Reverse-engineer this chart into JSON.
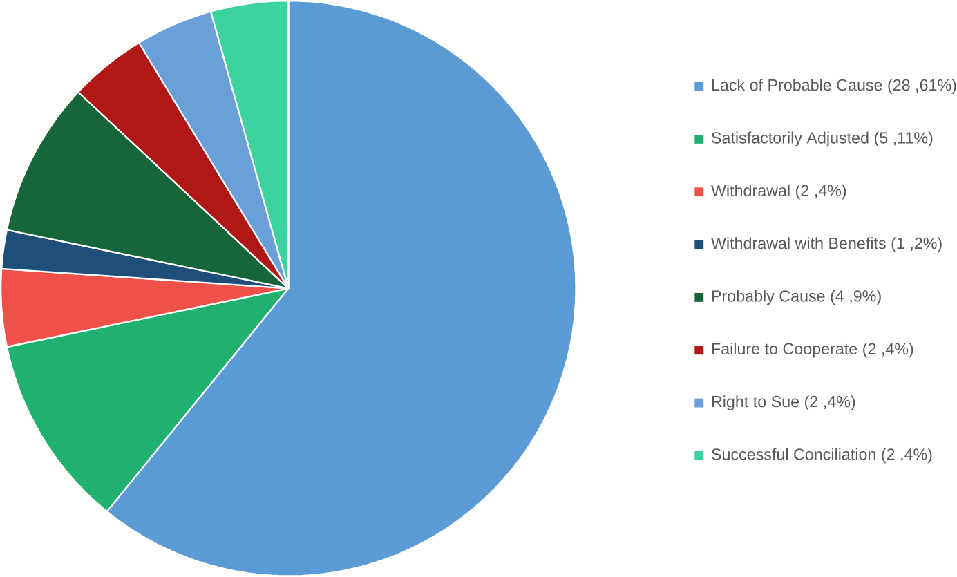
{
  "chart_data": {
    "type": "pie",
    "categories": [
      "Lack of Probable Cause (28 ,61%)",
      "Satisfactorily Adjusted (5 ,11%)",
      "Withdrawal (2 ,4%)",
      "Withdrawal with Benefits (1 ,2%)",
      "Probably Cause (4 ,9%)",
      "Failure to Cooperate (2 ,4%)",
      "Right to Sue (2 ,4%)",
      "Successful Conciliation (2 ,4%)"
    ],
    "values": [
      28,
      5,
      2,
      1,
      4,
      2,
      2,
      2
    ],
    "colors": [
      "#5b9bd5",
      "#20b070",
      "#f0504a",
      "#1f4e79",
      "#17653a",
      "#b01818",
      "#6a9fd8",
      "#3dd3a0"
    ],
    "legend": "right"
  }
}
